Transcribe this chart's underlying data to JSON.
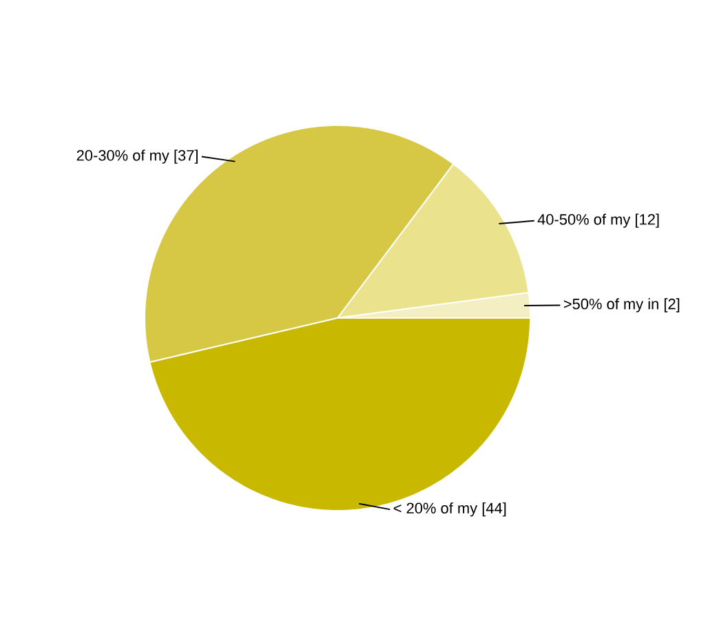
{
  "chart_data": {
    "type": "pie",
    "categories": [
      ">50% of my in",
      "40-50% of my",
      "20-30% of my",
      "< 20% of my"
    ],
    "values": [
      2,
      12,
      37,
      44
    ],
    "value_labels": [
      "[2]",
      "[12]",
      "[37]",
      "[44]"
    ],
    "colors": [
      "#f3efc2",
      "#ebe28e",
      "#d6c845",
      "#c9b800"
    ]
  }
}
